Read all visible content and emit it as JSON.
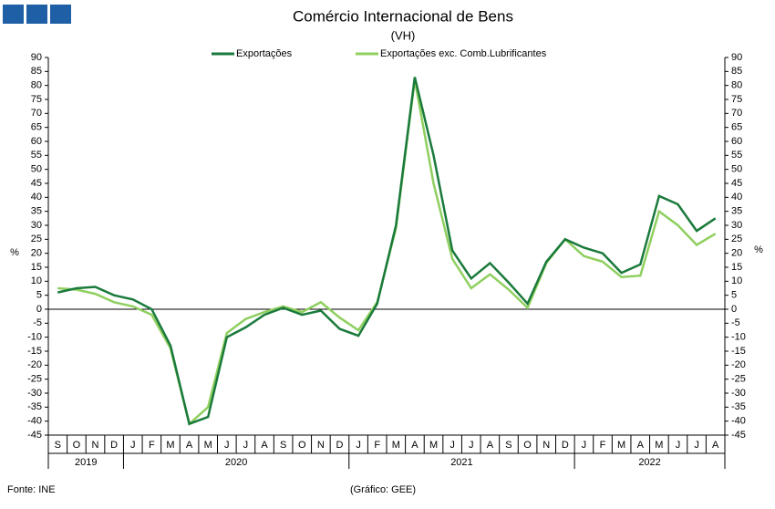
{
  "chart_data": {
    "type": "line",
    "title": "Comércio Internacional de Bens",
    "subtitle": "(VH)",
    "y_label": "%",
    "y2_label": "%",
    "source": "Fonte: INE",
    "note": "(Gráfico: GEE)",
    "categories": [
      "S",
      "O",
      "N",
      "D",
      "J",
      "F",
      "M",
      "A",
      "M",
      "J",
      "J",
      "A",
      "S",
      "O",
      "N",
      "D",
      "J",
      "F",
      "M",
      "A",
      "M",
      "J",
      "J",
      "A",
      "S",
      "O",
      "N",
      "D",
      "J",
      "F",
      "M",
      "A",
      "M",
      "J",
      "J",
      "A"
    ],
    "years": [
      "2019",
      "2020",
      "2021",
      "2022"
    ],
    "ylim": [
      -45,
      90
    ],
    "yticks": [
      -45,
      -40,
      -35,
      -30,
      -25,
      -20,
      -15,
      -10,
      -5,
      0,
      5,
      10,
      15,
      20,
      25,
      30,
      35,
      40,
      45,
      50,
      55,
      60,
      65,
      70,
      75,
      80,
      85,
      90
    ],
    "y2lim": [
      -45,
      90
    ],
    "y2ticks": [
      -45,
      -40,
      -35,
      -30,
      -25,
      -20,
      -15,
      -10,
      -5,
      0,
      5,
      10,
      15,
      20,
      25,
      30,
      35,
      40,
      45,
      50,
      55,
      60,
      65,
      70,
      75,
      80,
      85,
      90
    ],
    "legend": "top",
    "series": [
      {
        "name": "Exportações",
        "color": "#1a7a3c",
        "values": [
          6,
          7.5,
          8,
          5,
          3.5,
          0,
          -13,
          -41,
          -38.5,
          -10,
          -6.5,
          -2,
          0.5,
          -2,
          -0.5,
          -7,
          -9.5,
          2,
          30,
          83,
          55,
          21,
          11,
          16.5,
          9.5,
          2,
          17,
          25,
          22,
          20,
          13,
          16,
          40.5,
          37.5,
          28,
          32.5
        ]
      },
      {
        "name": "Exportações exc. Comb.Lubrificantes",
        "color": "#8fcf5f",
        "values": [
          7.5,
          7,
          5.5,
          2.5,
          1,
          -2,
          -14,
          -41,
          -35,
          -8.5,
          -3.5,
          -1,
          1,
          -1,
          2.5,
          -3,
          -7.5,
          2.5,
          29,
          82,
          45,
          18,
          7.5,
          12.5,
          7,
          0.5,
          16.5,
          25,
          19,
          17,
          11.5,
          12,
          35,
          30,
          23,
          27
        ]
      }
    ]
  }
}
